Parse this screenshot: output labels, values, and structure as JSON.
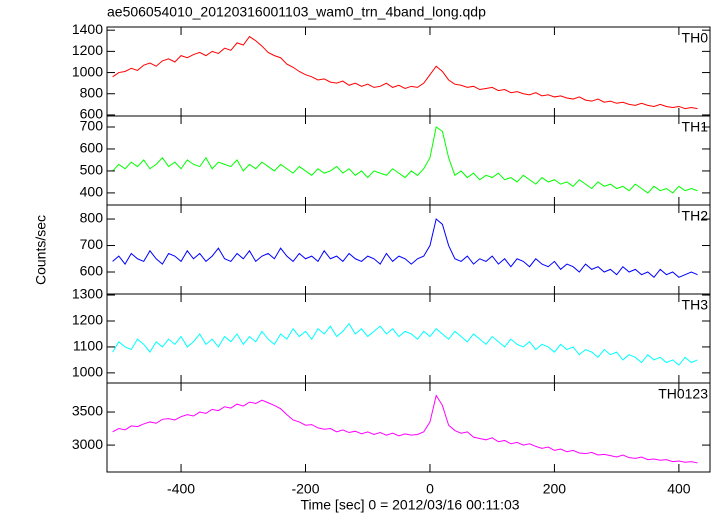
{
  "title": "ae506054010_20120316001103_wam0_trn_4band_long.qdp",
  "xlabel": "Time [sec] 0 = 2012/03/16 00:11:03",
  "ylabel": "Counts/sec",
  "xlim": [
    -519,
    450
  ],
  "xticks": [
    -400,
    -200,
    0,
    200,
    400
  ],
  "x": [
    -510,
    -500,
    -490,
    -480,
    -470,
    -460,
    -450,
    -440,
    -430,
    -420,
    -410,
    -400,
    -390,
    -380,
    -370,
    -360,
    -350,
    -340,
    -330,
    -320,
    -310,
    -300,
    -290,
    -280,
    -270,
    -260,
    -250,
    -240,
    -230,
    -220,
    -210,
    -200,
    -190,
    -180,
    -170,
    -160,
    -150,
    -140,
    -130,
    -120,
    -110,
    -100,
    -90,
    -80,
    -70,
    -60,
    -50,
    -40,
    -30,
    -20,
    -10,
    0,
    10,
    20,
    30,
    40,
    50,
    60,
    70,
    80,
    90,
    100,
    110,
    120,
    130,
    140,
    150,
    160,
    170,
    180,
    190,
    200,
    210,
    220,
    230,
    240,
    250,
    260,
    270,
    280,
    290,
    300,
    310,
    320,
    330,
    340,
    350,
    360,
    370,
    380,
    390,
    400,
    410,
    420,
    430
  ],
  "chart_data": [
    {
      "type": "line",
      "label": "TH0",
      "color": "#ff0000",
      "ylim": [
        590,
        1430
      ],
      "yticks": [
        600,
        800,
        1000,
        1200,
        1400
      ],
      "values": [
        960,
        1000,
        1010,
        1040,
        1020,
        1070,
        1090,
        1060,
        1110,
        1130,
        1100,
        1160,
        1140,
        1170,
        1190,
        1160,
        1200,
        1180,
        1230,
        1210,
        1280,
        1260,
        1340,
        1300,
        1250,
        1190,
        1160,
        1140,
        1080,
        1050,
        1010,
        980,
        960,
        930,
        940,
        910,
        900,
        920,
        880,
        900,
        870,
        890,
        860,
        870,
        900,
        860,
        880,
        850,
        870,
        860,
        900,
        980,
        1060,
        1010,
        930,
        890,
        880,
        860,
        870,
        840,
        850,
        860,
        830,
        840,
        810,
        820,
        800,
        790,
        810,
        780,
        790,
        770,
        780,
        760,
        750,
        770,
        740,
        730,
        750,
        720,
        730,
        710,
        720,
        700,
        690,
        710,
        690,
        680,
        700,
        680,
        670,
        680,
        660,
        670,
        660
      ]
    },
    {
      "type": "line",
      "label": "TH1",
      "color": "#00ff00",
      "ylim": [
        345,
        750
      ],
      "yticks": [
        400,
        500,
        600,
        700
      ],
      "values": [
        500,
        530,
        510,
        540,
        520,
        550,
        510,
        530,
        560,
        520,
        540,
        510,
        550,
        530,
        520,
        560,
        510,
        540,
        530,
        520,
        550,
        500,
        530,
        510,
        540,
        520,
        500,
        530,
        510,
        490,
        520,
        500,
        480,
        510,
        490,
        500,
        520,
        490,
        510,
        480,
        500,
        470,
        500,
        490,
        480,
        510,
        490,
        470,
        500,
        480,
        510,
        560,
        700,
        680,
        560,
        480,
        500,
        470,
        490,
        460,
        480,
        470,
        490,
        460,
        470,
        450,
        480,
        460,
        440,
        470,
        450,
        460,
        440,
        450,
        430,
        460,
        440,
        420,
        450,
        430,
        440,
        420,
        430,
        410,
        440,
        420,
        400,
        430,
        410,
        420,
        400,
        430,
        410,
        420,
        410
      ]
    },
    {
      "type": "line",
      "label": "TH2",
      "color": "#0000ff",
      "ylim": [
        517,
        853
      ],
      "yticks": [
        600,
        700,
        800
      ],
      "values": [
        640,
        660,
        630,
        670,
        650,
        640,
        680,
        650,
        630,
        670,
        660,
        640,
        680,
        650,
        670,
        640,
        660,
        690,
        650,
        640,
        670,
        650,
        680,
        640,
        660,
        670,
        650,
        690,
        660,
        640,
        670,
        650,
        660,
        640,
        680,
        650,
        660,
        640,
        670,
        650,
        640,
        660,
        650,
        630,
        670,
        640,
        660,
        650,
        630,
        650,
        660,
        700,
        800,
        780,
        700,
        650,
        640,
        660,
        630,
        650,
        640,
        660,
        630,
        650,
        620,
        650,
        640,
        620,
        650,
        630,
        620,
        640,
        610,
        630,
        620,
        600,
        630,
        610,
        620,
        600,
        610,
        590,
        620,
        600,
        610,
        590,
        600,
        580,
        610,
        590,
        600,
        580,
        590,
        600,
        590
      ]
    },
    {
      "type": "line",
      "label": "TH3",
      "color": "#00ffff",
      "ylim": [
        961,
        1304
      ],
      "yticks": [
        1000,
        1100,
        1200,
        1300
      ],
      "values": [
        1080,
        1120,
        1100,
        1090,
        1130,
        1110,
        1080,
        1120,
        1100,
        1130,
        1110,
        1140,
        1100,
        1120,
        1150,
        1110,
        1130,
        1100,
        1140,
        1120,
        1150,
        1110,
        1140,
        1120,
        1160,
        1130,
        1110,
        1150,
        1130,
        1170,
        1140,
        1160,
        1130,
        1170,
        1150,
        1180,
        1140,
        1160,
        1190,
        1150,
        1170,
        1140,
        1160,
        1180,
        1150,
        1170,
        1140,
        1160,
        1150,
        1130,
        1160,
        1140,
        1170,
        1150,
        1130,
        1160,
        1140,
        1120,
        1150,
        1130,
        1110,
        1140,
        1120,
        1100,
        1130,
        1110,
        1100,
        1120,
        1090,
        1110,
        1100,
        1080,
        1110,
        1090,
        1100,
        1070,
        1090,
        1080,
        1060,
        1090,
        1070,
        1080,
        1050,
        1070,
        1060,
        1040,
        1070,
        1050,
        1060,
        1040,
        1050,
        1030,
        1060,
        1040,
        1050
      ]
    },
    {
      "type": "line",
      "label": "TH0123",
      "color": "#ff00ff",
      "ylim": [
        2593,
        3939
      ],
      "yticks": [
        3000,
        3500
      ],
      "values": [
        3200,
        3250,
        3230,
        3290,
        3280,
        3320,
        3350,
        3330,
        3390,
        3400,
        3380,
        3430,
        3460,
        3440,
        3500,
        3480,
        3540,
        3520,
        3580,
        3560,
        3620,
        3590,
        3650,
        3630,
        3680,
        3640,
        3600,
        3550,
        3460,
        3380,
        3350,
        3300,
        3310,
        3260,
        3240,
        3250,
        3200,
        3230,
        3190,
        3210,
        3170,
        3200,
        3160,
        3190,
        3150,
        3180,
        3140,
        3170,
        3150,
        3160,
        3200,
        3350,
        3750,
        3600,
        3300,
        3220,
        3180,
        3200,
        3120,
        3100,
        3080,
        3110,
        3050,
        3070,
        3020,
        3040,
        3000,
        3020,
        2980,
        2950,
        2970,
        2920,
        2940,
        2900,
        2920,
        2880,
        2870,
        2890,
        2850,
        2860,
        2840,
        2820,
        2850,
        2810,
        2800,
        2820,
        2780,
        2790,
        2770,
        2780,
        2750,
        2760,
        2740,
        2750,
        2730
      ]
    }
  ]
}
